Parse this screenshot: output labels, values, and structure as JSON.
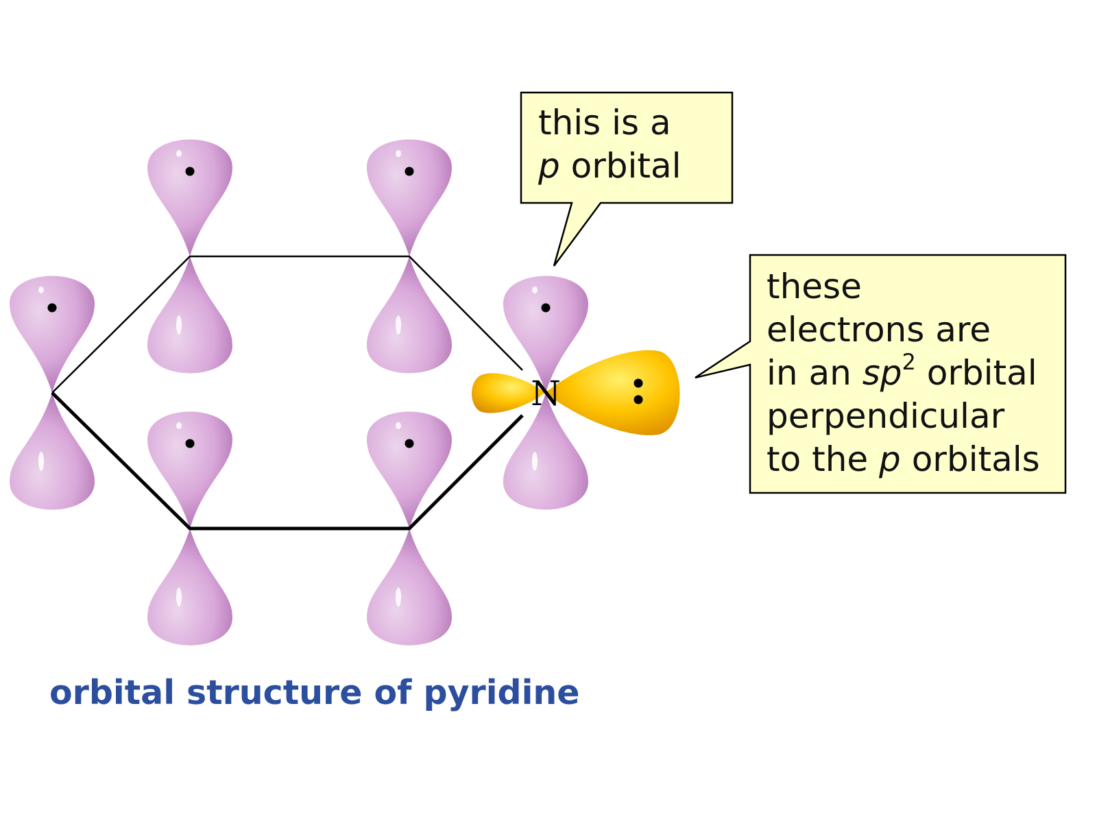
{
  "diagram": {
    "atom_label": "N",
    "caption": "orbital structure of pyridine",
    "callout_p_orbital": {
      "line1": "this is a",
      "line2_italic": "p",
      "line2_rest": " orbital"
    },
    "callout_sp2": {
      "line1": "these",
      "line2": "electrons are",
      "line3_pre": "in an ",
      "line3_italic": "sp",
      "line3_sup": "2",
      "line3_post": " orbital",
      "line4": "perpendicular",
      "line5_pre": "to the ",
      "line5_italic": "p",
      "line5_post": " orbitals"
    },
    "colors": {
      "p_orbital": "#d9a8d9",
      "p_orbital_shadow": "#a060a8",
      "sp2_orbital": "#ffc400",
      "sp2_orbital_shadow": "#d08000",
      "callout_fill": "#ffffcc",
      "caption": "#2b4e9e"
    }
  }
}
